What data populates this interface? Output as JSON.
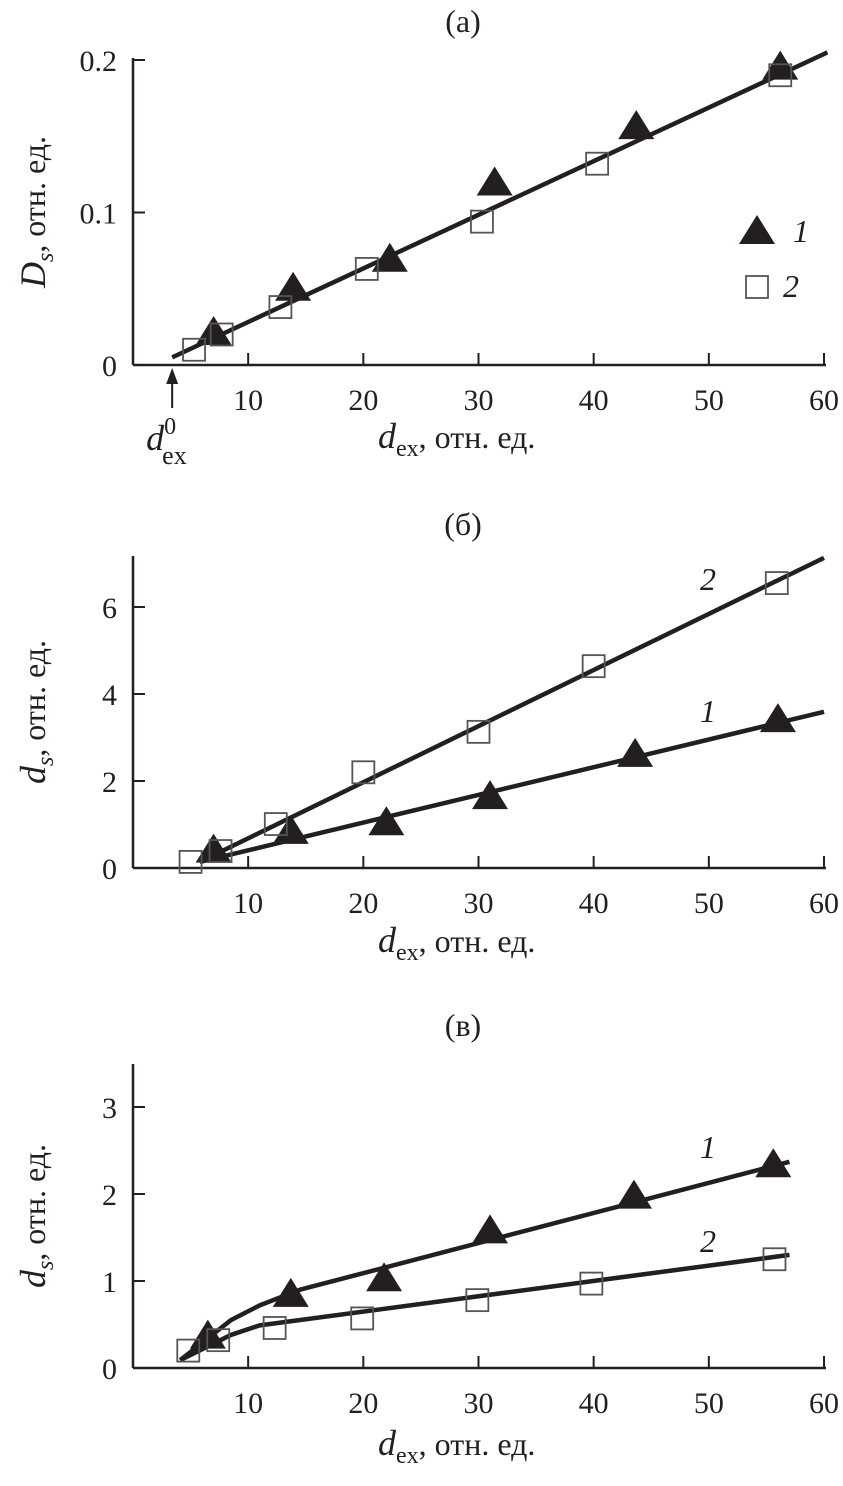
{
  "chart_data": [
    {
      "type": "scatter",
      "panel_label": "(a)",
      "xlabel": {
        "symbol": "d",
        "sub": "ex",
        "unit": ", отн. ед."
      },
      "ylabel": {
        "symbol": "D",
        "sub": "s",
        "unit": ", отн. ед."
      },
      "xlim": [
        0,
        60
      ],
      "ylim": [
        0,
        0.2
      ],
      "xticks": [
        10,
        20,
        30,
        40,
        50,
        60
      ],
      "yticks": [
        0,
        0.1,
        0.2
      ],
      "ytick_labels": [
        "0",
        "0.1",
        "0.2"
      ],
      "grid": false,
      "legend": {
        "placement": "right",
        "entries": [
          "1",
          "2"
        ]
      },
      "annotation": {
        "symbol": "d",
        "sub": "ex",
        "sup": "0",
        "x": 3.4
      },
      "series": [
        {
          "name": "1",
          "marker": "triangle-filled",
          "x": [
            7.0,
            13.9,
            22.3,
            31.4,
            43.7,
            56.2
          ],
          "y": [
            0.021,
            0.05,
            0.069,
            0.119,
            0.156,
            0.195
          ]
        },
        {
          "name": "2",
          "marker": "square-open",
          "x": [
            5.3,
            7.7,
            12.8,
            20.3,
            30.3,
            40.3,
            56.2
          ],
          "y": [
            0.01,
            0.02,
            0.038,
            0.063,
            0.094,
            0.132,
            0.19
          ]
        }
      ],
      "fit_lines": [
        {
          "x": [
            3.4,
            60.3
          ],
          "y": [
            0.005,
            0.205
          ]
        }
      ]
    },
    {
      "type": "scatter",
      "panel_label": "(б)",
      "xlabel": {
        "symbol": "d",
        "sub": "ex",
        "unit": ", отн. ед."
      },
      "ylabel": {
        "symbol": "d",
        "sub": "s",
        "unit": ", отн. ед."
      },
      "xlim": [
        0,
        60
      ],
      "ylim": [
        0,
        7
      ],
      "xticks": [
        10,
        20,
        30,
        40,
        50,
        60
      ],
      "yticks": [
        0,
        2,
        4,
        6
      ],
      "ytick_labels": [
        "0",
        "2",
        "4",
        "6"
      ],
      "grid": false,
      "series": [
        {
          "name": "1",
          "marker": "triangle-filled",
          "x": [
            7.0,
            13.7,
            22.0,
            31.0,
            43.6,
            56.0
          ],
          "y": [
            0.4,
            0.83,
            1.03,
            1.63,
            2.6,
            3.4
          ]
        },
        {
          "name": "2",
          "marker": "square-open",
          "x": [
            5.0,
            7.6,
            12.4,
            20.0,
            30.0,
            40.0,
            55.9
          ],
          "y": [
            0.14,
            0.39,
            1.01,
            2.2,
            3.13,
            4.64,
            6.55
          ]
        }
      ],
      "fit_lines": [
        {
          "label": "1",
          "x": [
            5.8,
            60
          ],
          "y": [
            0.14,
            3.59
          ]
        },
        {
          "label": "2",
          "x": [
            5.8,
            60
          ],
          "y": [
            0.14,
            7.13
          ]
        }
      ]
    },
    {
      "type": "scatter",
      "panel_label": "(в)",
      "xlabel": {
        "symbol": "d",
        "sub": "ex",
        "unit": ", отн. ед."
      },
      "ylabel": {
        "symbol": "d",
        "sub": "s",
        "unit": ", отн. ед."
      },
      "xlim": [
        0,
        60
      ],
      "ylim": [
        0,
        3.5
      ],
      "xticks": [
        10,
        20,
        30,
        40,
        50,
        60
      ],
      "yticks": [
        0,
        1,
        2,
        3
      ],
      "ytick_labels": [
        "0",
        "1",
        "2",
        "3"
      ],
      "grid": false,
      "series": [
        {
          "name": "1",
          "marker": "triangle-filled",
          "x": [
            6.5,
            13.7,
            21.8,
            31.0,
            43.5,
            55.6
          ],
          "y": [
            0.36,
            0.84,
            1.02,
            1.57,
            1.97,
            2.33
          ]
        },
        {
          "name": "2",
          "marker": "square-open",
          "x": [
            4.8,
            7.4,
            12.3,
            19.9,
            29.9,
            39.8,
            55.7
          ],
          "y": [
            0.2,
            0.32,
            0.46,
            0.57,
            0.78,
            0.97,
            1.25
          ]
        }
      ],
      "fit_lines": [
        {
          "label": "1",
          "x": [
            4.1,
            8.5,
            11,
            14.5,
            57
          ],
          "y": [
            0.09,
            0.55,
            0.72,
            0.9,
            2.37
          ]
        },
        {
          "label": "2",
          "x": [
            4.1,
            8.5,
            11,
            57
          ],
          "y": [
            0.09,
            0.38,
            0.49,
            1.3
          ]
        }
      ]
    }
  ]
}
